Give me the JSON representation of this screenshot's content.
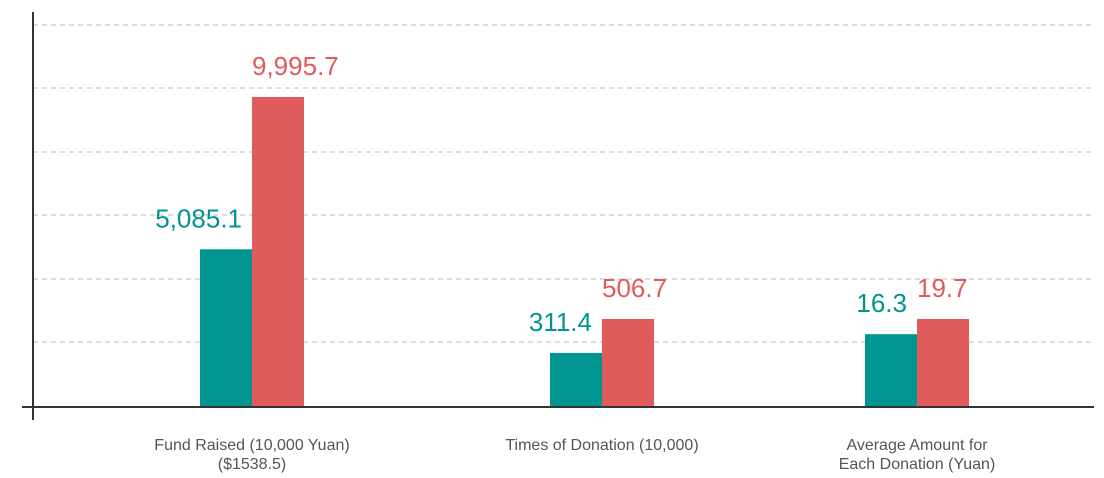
{
  "chart_data": {
    "type": "bar",
    "categories": [
      [
        "Fund Raised (10,000 Yuan)",
        "($1538.5)"
      ],
      [
        "Times of Donation (10,000)"
      ],
      [
        "Average Amount for",
        "Each Donation (Yuan)"
      ]
    ],
    "series": [
      {
        "color": "#009591",
        "values": [
          5085.1,
          311.4,
          16.3
        ],
        "value_labels": [
          "5,085.1",
          "311.4",
          "16.3"
        ]
      },
      {
        "color": "#e05b5b",
        "values": [
          9995.7,
          506.7,
          19.7
        ],
        "value_labels": [
          "9,995.7",
          "506.7",
          "19.7"
        ]
      }
    ],
    "grid": true
  }
}
